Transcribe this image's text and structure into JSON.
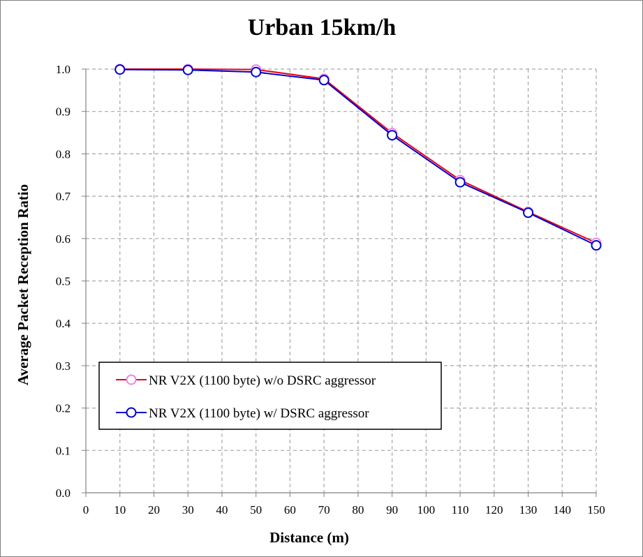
{
  "chart_data": {
    "type": "line",
    "title": "Urban 15km/h",
    "xlabel": "Distance (m)",
    "ylabel": "Average Packet Reception Ratio",
    "xlim": [
      0,
      150
    ],
    "ylim": [
      0.0,
      1.0
    ],
    "x_ticks": [
      "0",
      "10",
      "20",
      "30",
      "40",
      "50",
      "60",
      "70",
      "80",
      "90",
      "100",
      "110",
      "120",
      "130",
      "140",
      "150"
    ],
    "y_ticks": [
      "0.0",
      "0.1",
      "0.2",
      "0.3",
      "0.4",
      "0.5",
      "0.6",
      "0.7",
      "0.8",
      "0.9",
      "1.0"
    ],
    "grid": true,
    "legend_position": "bottom-left",
    "x": [
      10,
      30,
      50,
      70,
      90,
      110,
      130,
      150
    ],
    "series": [
      {
        "name": "NR V2X (1100 byte) w/o DSRC aggressor",
        "line_color": "#e8001c",
        "marker_color": "#ee82ee",
        "values": [
          1.0,
          1.0,
          0.999,
          0.977,
          0.849,
          0.738,
          0.663,
          0.59
        ]
      },
      {
        "name": "NR V2X (1100 byte) w/ DSRC aggressor",
        "line_color": "#0000cc",
        "marker_color": "#0000cc",
        "values": [
          0.999,
          0.998,
          0.993,
          0.974,
          0.844,
          0.733,
          0.661,
          0.584
        ]
      }
    ]
  }
}
